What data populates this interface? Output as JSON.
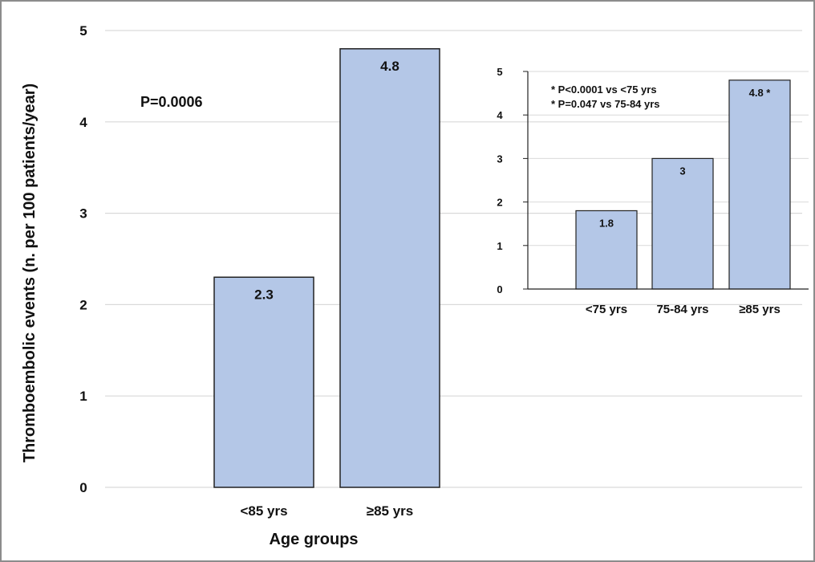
{
  "colors": {
    "bar_fill": "#b4c7e7",
    "bar_stroke": "#222222",
    "grid": "#d9d9d9",
    "frame": "#8c8c8c",
    "axis": "#222222"
  },
  "chart_data": [
    {
      "type": "bar",
      "ylabel": "Thromboembolic events (n. per 100 patients/year)",
      "xlabel": "Age groups",
      "annotation": "P=0.0006",
      "categories": [
        "<85 yrs",
        "≥85 yrs"
      ],
      "values": [
        2.3,
        4.8
      ],
      "data_labels": [
        "2.3",
        "4.8"
      ],
      "ylim": [
        0,
        5
      ],
      "yticks": [
        "0",
        "1",
        "2",
        "3",
        "4",
        "5"
      ],
      "grid": true
    },
    {
      "type": "bar",
      "inset": true,
      "annotations": [
        "* P<0.0001 vs <75 yrs",
        "* P=0.047 vs 75-84 yrs"
      ],
      "categories": [
        "<75 yrs",
        "75-84 yrs",
        "≥85 yrs"
      ],
      "values": [
        1.8,
        3,
        4.8
      ],
      "data_labels": [
        "1.8",
        "3",
        "4.8 *"
      ],
      "ylim": [
        0,
        5
      ],
      "yticks": [
        "0",
        "1",
        "2",
        "3",
        "4",
        "5"
      ],
      "grid": true
    }
  ]
}
